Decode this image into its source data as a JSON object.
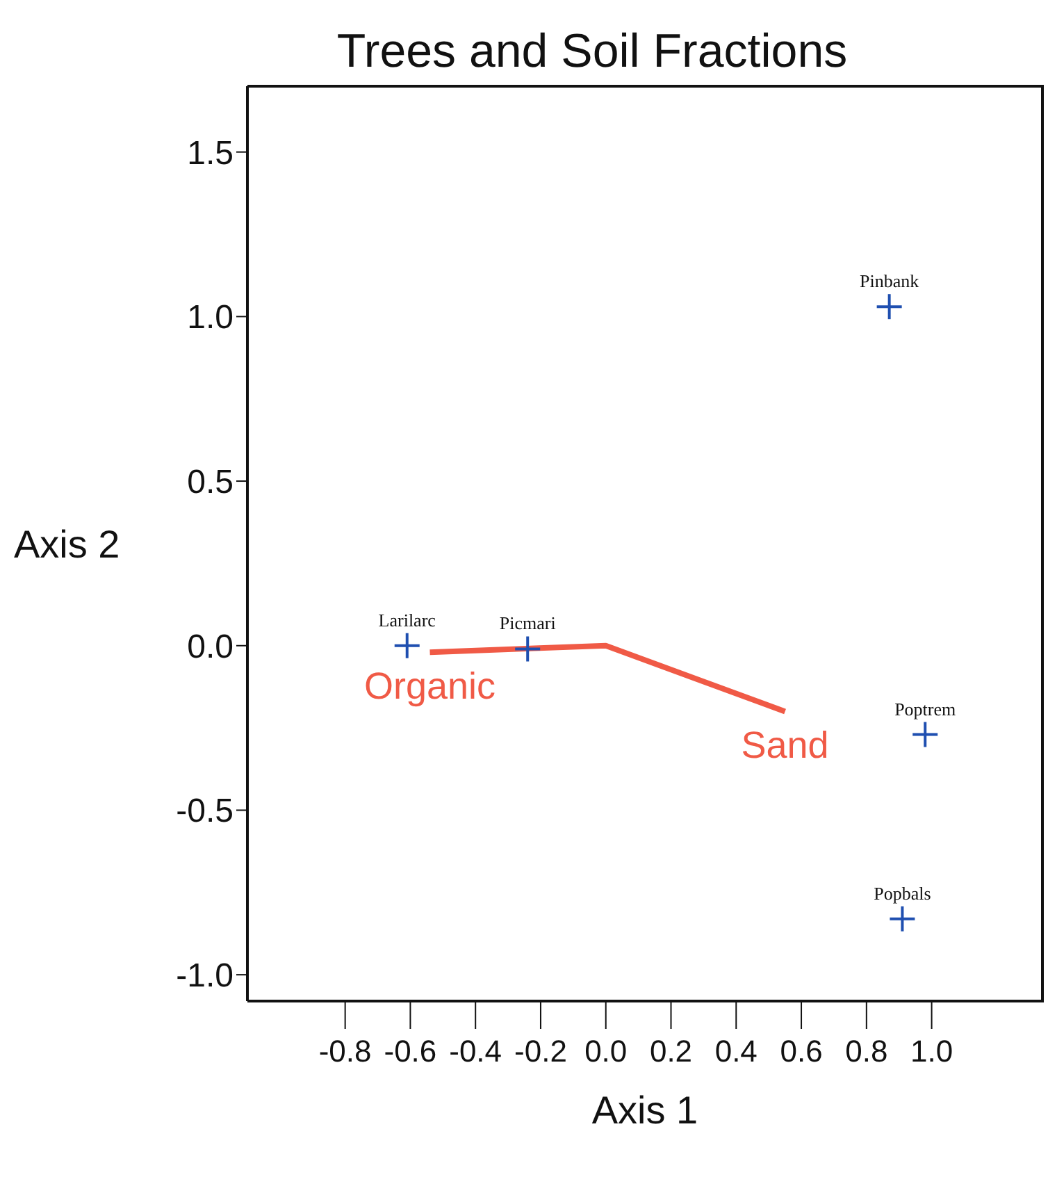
{
  "chart_data": {
    "type": "scatter",
    "title": "Trees and Soil Fractions",
    "xlabel": "Axis 1",
    "ylabel": "Axis 2",
    "xlim": [
      -1.1,
      1.34
    ],
    "ylim": [
      -1.08,
      1.7
    ],
    "xticks": [
      {
        "value": -0.8,
        "label": "-0.8"
      },
      {
        "value": -0.6,
        "label": "-0.6"
      },
      {
        "value": -0.4,
        "label": "-0.4"
      },
      {
        "value": -0.2,
        "label": "-0.2"
      },
      {
        "value": 0,
        "label": "0.0"
      },
      {
        "value": 0.2,
        "label": "0.2"
      },
      {
        "value": 0.4,
        "label": "0.4"
      },
      {
        "value": 0.6,
        "label": "0.6"
      },
      {
        "value": 0.8,
        "label": "0.8"
      },
      {
        "value": 1,
        "label": "1.0"
      }
    ],
    "yticks": [
      {
        "value": -1,
        "label": "-1.0"
      },
      {
        "value": -0.5,
        "label": "-0.5"
      },
      {
        "value": 0,
        "label": "0.0"
      },
      {
        "value": 0.5,
        "label": "0.5"
      },
      {
        "value": 1,
        "label": "1.0"
      },
      {
        "value": 1.5,
        "label": "1.5"
      }
    ],
    "grid": false,
    "legend": false,
    "marker": "cross",
    "series": [
      {
        "type": "scatter",
        "color": "#1f4fb0",
        "x": [
          -0.61,
          -0.24,
          0.87,
          0.98,
          0.91
        ],
        "values": [
          0,
          -0.01,
          1.03,
          -0.27,
          -0.83
        ]
      },
      {
        "type": "line",
        "color": "#f05a46",
        "marker": "none",
        "line_style": "solid",
        "x": [
          -0.54,
          0,
          0.55
        ],
        "values": [
          -0.02,
          0,
          -0.2
        ]
      }
    ],
    "annotations": [
      {
        "text": "Larilarc",
        "x": -0.61,
        "y": 0
      },
      {
        "text": "Picmari",
        "x": -0.24,
        "y": -0.01
      },
      {
        "text": "Pinbank",
        "x": 0.87,
        "y": 1.03
      },
      {
        "text": "Poptrem",
        "x": 0.98,
        "y": -0.27
      },
      {
        "text": "Popbals",
        "x": 0.91,
        "y": -0.83
      },
      {
        "text": "Organic",
        "x": -0.54,
        "y": -0.02
      },
      {
        "text": "Sand",
        "x": 0.55,
        "y": -0.2
      }
    ]
  }
}
